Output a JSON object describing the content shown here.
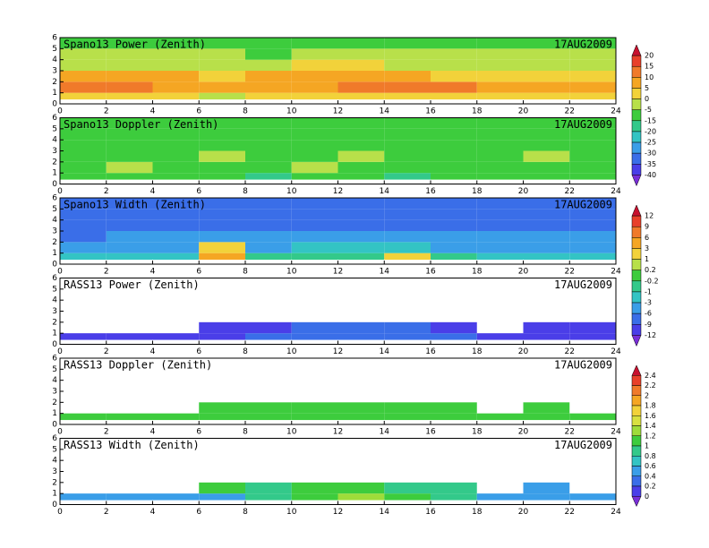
{
  "chart_data": [
    {
      "type": "heatmap",
      "title": "Spano13 Power (Zenith)",
      "date": "17AUG2009",
      "xlim": [
        0,
        24
      ],
      "xticks": [
        0,
        2,
        4,
        6,
        8,
        10,
        12,
        14,
        16,
        18,
        20,
        22,
        24
      ],
      "ylim": [
        0,
        6
      ],
      "yticks": [
        0,
        1,
        2,
        3,
        4,
        5,
        6
      ],
      "x_bins": [
        0,
        2,
        4,
        6,
        8,
        10,
        12,
        14,
        16,
        18,
        20,
        22,
        24
      ],
      "y_bins": [
        0.4,
        1,
        2,
        3,
        4,
        5,
        6
      ],
      "z": [
        [
          0,
          0,
          0,
          -5,
          0,
          0,
          0,
          0,
          0,
          0,
          0,
          0
        ],
        [
          10,
          10,
          5,
          5,
          5,
          5,
          10,
          10,
          10,
          5,
          5,
          5
        ],
        [
          5,
          5,
          5,
          0,
          5,
          5,
          5,
          5,
          0,
          0,
          0,
          0
        ],
        [
          -5,
          -5,
          -5,
          -5,
          -5,
          0,
          0,
          -5,
          -5,
          -5,
          -5,
          -5
        ],
        [
          -5,
          -5,
          -5,
          -5,
          -10,
          -5,
          -5,
          -5,
          -5,
          -5,
          -5,
          -5
        ],
        [
          -15,
          -15,
          -10,
          -10,
          -10,
          -10,
          -10,
          -10,
          -10,
          -10,
          -10,
          -10
        ]
      ],
      "colorbar": {
        "levels": [
          20,
          15,
          10,
          5,
          0,
          -5,
          -15,
          -20,
          -25,
          -30,
          -35,
          -40
        ],
        "colors": [
          "#c8102e",
          "#e8402a",
          "#f07a2a",
          "#f5a623",
          "#f2d23a",
          "#b8e04a",
          "#3dcc3d",
          "#33c98a",
          "#33c4c4",
          "#3a9ee8",
          "#3a6ee8",
          "#4a3ee8",
          "#7a2ed8"
        ]
      }
    },
    {
      "type": "heatmap",
      "title": "Spano13 Doppler (Zenith)",
      "date": "17AUG2009",
      "xlim": [
        0,
        24
      ],
      "xticks": [
        0,
        2,
        4,
        6,
        8,
        10,
        12,
        14,
        16,
        18,
        20,
        22,
        24
      ],
      "ylim": [
        0,
        6
      ],
      "yticks": [
        0,
        1,
        2,
        3,
        4,
        5,
        6
      ],
      "x_bins": [
        0,
        2,
        4,
        6,
        8,
        10,
        12,
        14,
        16,
        18,
        20,
        22,
        24
      ],
      "y_bins": [
        0.4,
        1,
        2,
        3,
        4,
        5,
        6
      ],
      "z": [
        [
          -10,
          -10,
          -10,
          -10,
          -20,
          -10,
          -10,
          -20,
          -10,
          -10,
          -10,
          -10
        ],
        [
          -10,
          -5,
          -10,
          -10,
          -10,
          -5,
          -10,
          -10,
          -10,
          -10,
          -10,
          -10
        ],
        [
          -10,
          -10,
          -10,
          -5,
          -10,
          -10,
          -5,
          -10,
          -10,
          -10,
          -5,
          -10
        ],
        [
          -10,
          -10,
          -10,
          -10,
          -10,
          -10,
          -10,
          -10,
          -10,
          -10,
          -10,
          -10
        ],
        [
          -10,
          -10,
          -10,
          -10,
          -10,
          -10,
          -10,
          -10,
          -10,
          -10,
          -10,
          -10
        ],
        [
          -10,
          -10,
          -10,
          -10,
          -10,
          -10,
          -10,
          -10,
          -10,
          -10,
          -10,
          -10
        ]
      ]
    },
    {
      "type": "heatmap",
      "title": "Spano13 Width (Zenith)",
      "date": "17AUG2009",
      "xlim": [
        0,
        24
      ],
      "xticks": [
        0,
        2,
        4,
        6,
        8,
        10,
        12,
        14,
        16,
        18,
        20,
        22,
        24
      ],
      "ylim": [
        0,
        6
      ],
      "yticks": [
        0,
        1,
        2,
        3,
        4,
        5,
        6
      ],
      "x_bins": [
        0,
        2,
        4,
        6,
        8,
        10,
        12,
        14,
        16,
        18,
        20,
        22,
        24
      ],
      "y_bins": [
        0.4,
        1,
        2,
        3,
        4,
        5,
        6
      ],
      "z": [
        [
          -3,
          -3,
          -3,
          3,
          -1,
          -1,
          -1,
          1,
          -1,
          -3,
          -3,
          -3
        ],
        [
          -6,
          -6,
          -6,
          1,
          -6,
          -3,
          -3,
          -3,
          -6,
          -6,
          -6,
          -6
        ],
        [
          -9,
          -6,
          -6,
          -6,
          -6,
          -6,
          -6,
          -6,
          -6,
          -6,
          -6,
          -6
        ],
        [
          -9,
          -9,
          -9,
          -9,
          -9,
          -9,
          -9,
          -9,
          -9,
          -9,
          -9,
          -9
        ],
        [
          -9,
          -9,
          -9,
          -9,
          -9,
          -9,
          -9,
          -9,
          -9,
          -9,
          -9,
          -9
        ],
        [
          -9,
          -9,
          -9,
          -9,
          -9,
          -9,
          -9,
          -9,
          -9,
          -9,
          -9,
          -9
        ]
      ],
      "colorbar": {
        "levels": [
          12,
          9,
          6,
          3,
          1,
          0.2,
          -0.2,
          -1,
          -3,
          -6,
          -9,
          -12
        ],
        "colors": [
          "#c8102e",
          "#e8402a",
          "#f07a2a",
          "#f5a623",
          "#f2d23a",
          "#b8e04a",
          "#3dcc3d",
          "#33c98a",
          "#33c4c4",
          "#3a9ee8",
          "#3a6ee8",
          "#4a3ee8",
          "#7a2ed8"
        ]
      }
    },
    {
      "type": "heatmap",
      "title": "RASS13 Power (Zenith)",
      "date": "17AUG2009",
      "xlim": [
        0,
        24
      ],
      "xticks": [
        0,
        2,
        4,
        6,
        8,
        10,
        12,
        14,
        16,
        18,
        20,
        22,
        24
      ],
      "ylim": [
        0,
        6
      ],
      "yticks": [
        0,
        1,
        2,
        3,
        4,
        5,
        6
      ],
      "x_bins": [
        0,
        2,
        4,
        6,
        8,
        10,
        12,
        14,
        16,
        18,
        20,
        22,
        24
      ],
      "y_bins": [
        0.4,
        1,
        2,
        3,
        4,
        5,
        6
      ],
      "z": [
        [
          -12,
          -12,
          -12,
          -12,
          -9,
          -9,
          -9,
          -9,
          -9,
          -12,
          -12,
          -12
        ],
        [
          null,
          null,
          null,
          -12,
          -12,
          -9,
          -9,
          -9,
          -12,
          null,
          -12,
          -12
        ],
        [
          null,
          null,
          null,
          null,
          null,
          null,
          null,
          null,
          null,
          null,
          null,
          null
        ],
        [
          null,
          null,
          null,
          null,
          null,
          null,
          null,
          null,
          null,
          null,
          null,
          null
        ],
        [
          null,
          null,
          null,
          null,
          null,
          null,
          null,
          null,
          null,
          null,
          null,
          null
        ],
        [
          null,
          null,
          null,
          null,
          null,
          null,
          null,
          null,
          null,
          null,
          null,
          null
        ]
      ]
    },
    {
      "type": "heatmap",
      "title": "RASS13 Doppler (Zenith)",
      "date": "17AUG2009",
      "xlim": [
        0,
        24
      ],
      "xticks": [
        0,
        2,
        4,
        6,
        8,
        10,
        12,
        14,
        16,
        18,
        20,
        22,
        24
      ],
      "ylim": [
        0,
        6
      ],
      "yticks": [
        0,
        1,
        2,
        3,
        4,
        5,
        6
      ],
      "x_bins": [
        0,
        2,
        4,
        6,
        8,
        10,
        12,
        14,
        16,
        18,
        20,
        22,
        24
      ],
      "y_bins": [
        0.4,
        1,
        2,
        3,
        4,
        5,
        6
      ],
      "z": [
        [
          1.1,
          1.1,
          1.1,
          1.1,
          1.1,
          1.1,
          1.1,
          1.1,
          1.1,
          1.1,
          1.1,
          1.1
        ],
        [
          null,
          null,
          null,
          1.1,
          1.1,
          1.1,
          1.1,
          1.1,
          1.1,
          null,
          1.1,
          null
        ],
        [
          null,
          null,
          null,
          null,
          null,
          null,
          null,
          null,
          null,
          null,
          null,
          null
        ],
        [
          null,
          null,
          null,
          null,
          null,
          null,
          null,
          null,
          null,
          null,
          null,
          null
        ],
        [
          null,
          null,
          null,
          null,
          null,
          null,
          null,
          null,
          null,
          null,
          null,
          null
        ],
        [
          null,
          null,
          null,
          null,
          null,
          null,
          null,
          null,
          null,
          null,
          null,
          null
        ]
      ],
      "colorbar": {
        "levels": [
          2.4,
          2.2,
          2,
          1.8,
          1.6,
          1.4,
          1.2,
          1,
          0.8,
          0.6,
          0.4,
          0.2,
          0
        ],
        "colors": [
          "#c8102e",
          "#e8402a",
          "#f07a2a",
          "#f5a623",
          "#f2d23a",
          "#d8e040",
          "#9edc3a",
          "#3dcc3d",
          "#33c98a",
          "#33c4c4",
          "#3a9ee8",
          "#3a6ee8",
          "#4a3ee8",
          "#7a2ed8"
        ]
      }
    },
    {
      "type": "heatmap",
      "title": "RASS13 Width (Zenith)",
      "date": "17AUG2009",
      "xlim": [
        0,
        24
      ],
      "xticks": [
        0,
        2,
        4,
        6,
        8,
        10,
        12,
        14,
        16,
        18,
        20,
        22,
        24
      ],
      "ylim": [
        0,
        6
      ],
      "yticks": [
        0,
        1,
        2,
        3,
        4,
        5,
        6
      ],
      "x_bins": [
        0,
        2,
        4,
        6,
        8,
        10,
        12,
        14,
        16,
        18,
        20,
        22,
        24
      ],
      "y_bins": [
        0.4,
        1,
        2,
        3,
        4,
        5,
        6
      ],
      "z": [
        [
          0.5,
          0.5,
          0.5,
          0.5,
          0.9,
          1.1,
          1.3,
          1.1,
          0.9,
          0.5,
          0.5,
          0.5
        ],
        [
          null,
          null,
          null,
          1.1,
          0.9,
          1.1,
          1.1,
          0.9,
          0.9,
          null,
          0.5,
          null
        ],
        [
          null,
          null,
          null,
          null,
          null,
          null,
          null,
          null,
          null,
          null,
          null,
          null
        ],
        [
          null,
          null,
          null,
          null,
          null,
          null,
          null,
          null,
          null,
          null,
          null,
          null
        ],
        [
          null,
          null,
          null,
          null,
          null,
          null,
          null,
          null,
          null,
          null,
          null,
          null
        ],
        [
          null,
          null,
          null,
          null,
          null,
          null,
          null,
          null,
          null,
          null,
          null,
          null
        ]
      ]
    }
  ]
}
